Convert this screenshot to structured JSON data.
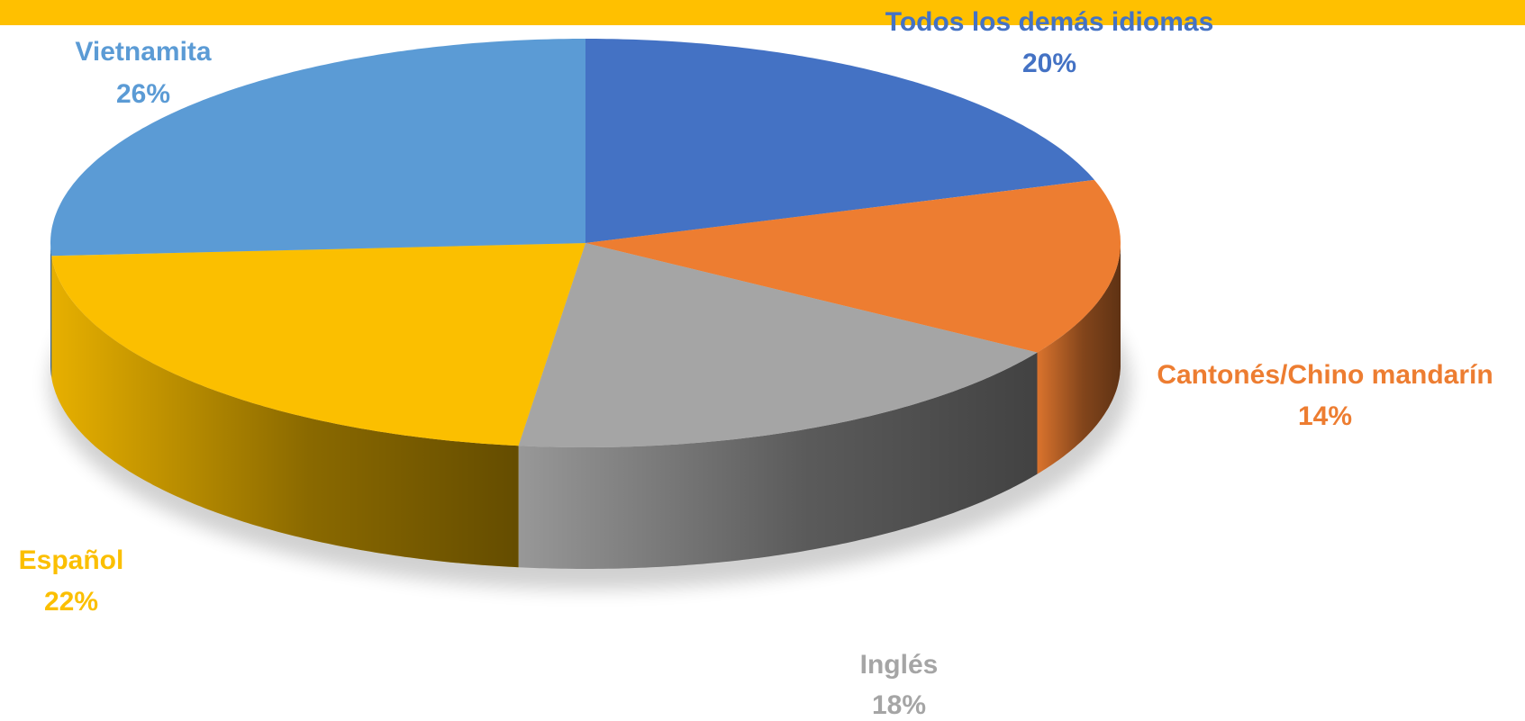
{
  "chart_data": {
    "type": "pie3d",
    "categories": [
      "Todos los demás idiomas",
      "Cantonés/Chino mandarín",
      "Inglés",
      "Español",
      "Vietnamita"
    ],
    "values": [
      20,
      14,
      18,
      22,
      26
    ],
    "value_labels": [
      "20%",
      "14%",
      "18%",
      "22%",
      "26%"
    ],
    "colors": [
      "#4472c4",
      "#ed7d31",
      "#a5a5a5",
      "#fbbf00",
      "#5b9bd5"
    ]
  }
}
